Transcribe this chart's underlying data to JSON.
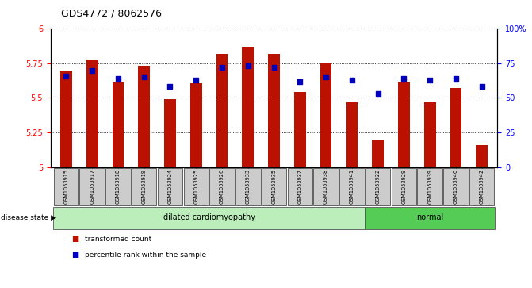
{
  "title": "GDS4772 / 8062576",
  "samples": [
    "GSM1053915",
    "GSM1053917",
    "GSM1053918",
    "GSM1053919",
    "GSM1053924",
    "GSM1053925",
    "GSM1053926",
    "GSM1053933",
    "GSM1053935",
    "GSM1053937",
    "GSM1053938",
    "GSM1053941",
    "GSM1053922",
    "GSM1053929",
    "GSM1053939",
    "GSM1053940",
    "GSM1053942"
  ],
  "red_values": [
    5.7,
    5.78,
    5.62,
    5.73,
    5.49,
    5.61,
    5.82,
    5.87,
    5.82,
    5.54,
    5.75,
    5.47,
    5.2,
    5.62,
    5.47,
    5.57,
    5.16
  ],
  "blue_values": [
    66,
    70,
    64,
    65,
    58,
    63,
    72,
    73,
    72,
    62,
    65,
    63,
    53,
    64,
    63,
    64,
    58
  ],
  "ylim_left": [
    5.0,
    6.0
  ],
  "ylim_right": [
    0,
    100
  ],
  "yticks_left": [
    5.0,
    5.25,
    5.5,
    5.75,
    6.0
  ],
  "ytick_labels_left": [
    "5",
    "5.25",
    "5.5",
    "5.75",
    "6"
  ],
  "yticks_right": [
    0,
    25,
    50,
    75,
    100
  ],
  "ytick_labels_right": [
    "0",
    "25",
    "50",
    "75",
    "100%"
  ],
  "disease_groups": [
    {
      "label": "dilated cardiomyopathy",
      "start": 0,
      "end": 12,
      "color": "#BBEEBB"
    },
    {
      "label": "normal",
      "start": 12,
      "end": 17,
      "color": "#55CC55"
    }
  ],
  "bar_color": "#BB1100",
  "dot_color": "#0000BB",
  "tick_label_box_color": "#CCCCCC",
  "bar_width": 0.45,
  "dot_size": 18
}
